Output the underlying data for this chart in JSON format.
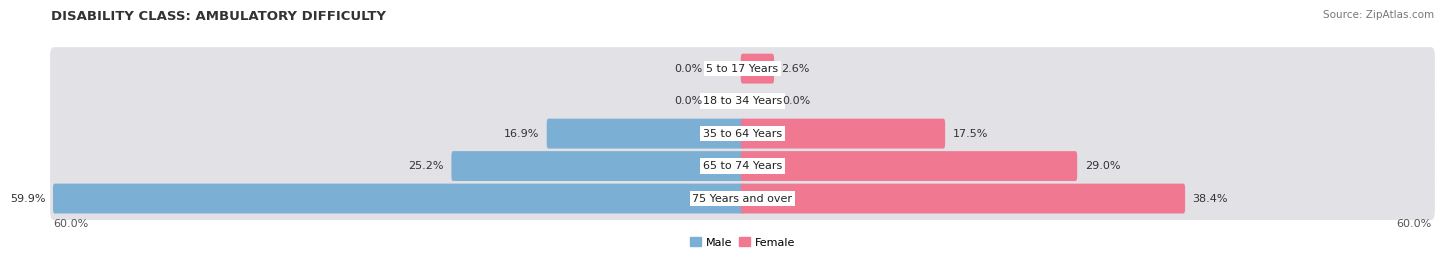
{
  "title": "DISABILITY CLASS: AMBULATORY DIFFICULTY",
  "source": "Source: ZipAtlas.com",
  "categories": [
    "5 to 17 Years",
    "18 to 34 Years",
    "35 to 64 Years",
    "65 to 74 Years",
    "75 Years and over"
  ],
  "male_values": [
    0.0,
    0.0,
    16.9,
    25.2,
    59.9
  ],
  "female_values": [
    2.6,
    0.0,
    17.5,
    29.0,
    38.4
  ],
  "max_value": 60.0,
  "male_color": "#7bafd4",
  "female_color": "#f07890",
  "male_label": "Male",
  "female_label": "Female",
  "bg_row_color": "#e2e2e6",
  "title_fontsize": 9.5,
  "label_fontsize": 8.0,
  "tick_fontsize": 8.0,
  "source_fontsize": 7.5,
  "x_axis_label_left": "60.0%",
  "x_axis_label_right": "60.0%"
}
